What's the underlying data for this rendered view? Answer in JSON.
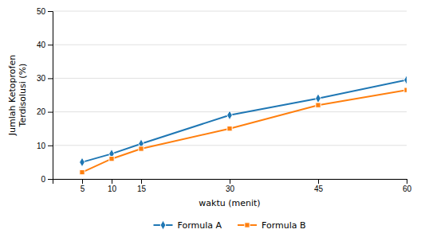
{
  "chart_data": {
    "type": "line",
    "x": [
      5,
      10,
      15,
      30,
      45,
      60
    ],
    "series": [
      {
        "name": "Formula A",
        "marker": "diamond",
        "values": [
          5.0,
          7.5,
          10.5,
          19.0,
          24.0,
          29.5
        ]
      },
      {
        "name": "Formula B",
        "marker": "square",
        "values": [
          2.0,
          6.0,
          9.0,
          15.0,
          22.0,
          26.5
        ]
      }
    ],
    "xlabel": "waktu (menit)",
    "ylabel": "Jumlah Ketoprofen\nTerdisolusi (%)",
    "xlim": [
      0,
      60
    ],
    "xticks": [
      5,
      10,
      15,
      30,
      45,
      60
    ],
    "ylim": [
      0,
      50
    ],
    "yticks": [
      0,
      10,
      20,
      30,
      40,
      50
    ],
    "grid": true,
    "legend": "bottom"
  }
}
